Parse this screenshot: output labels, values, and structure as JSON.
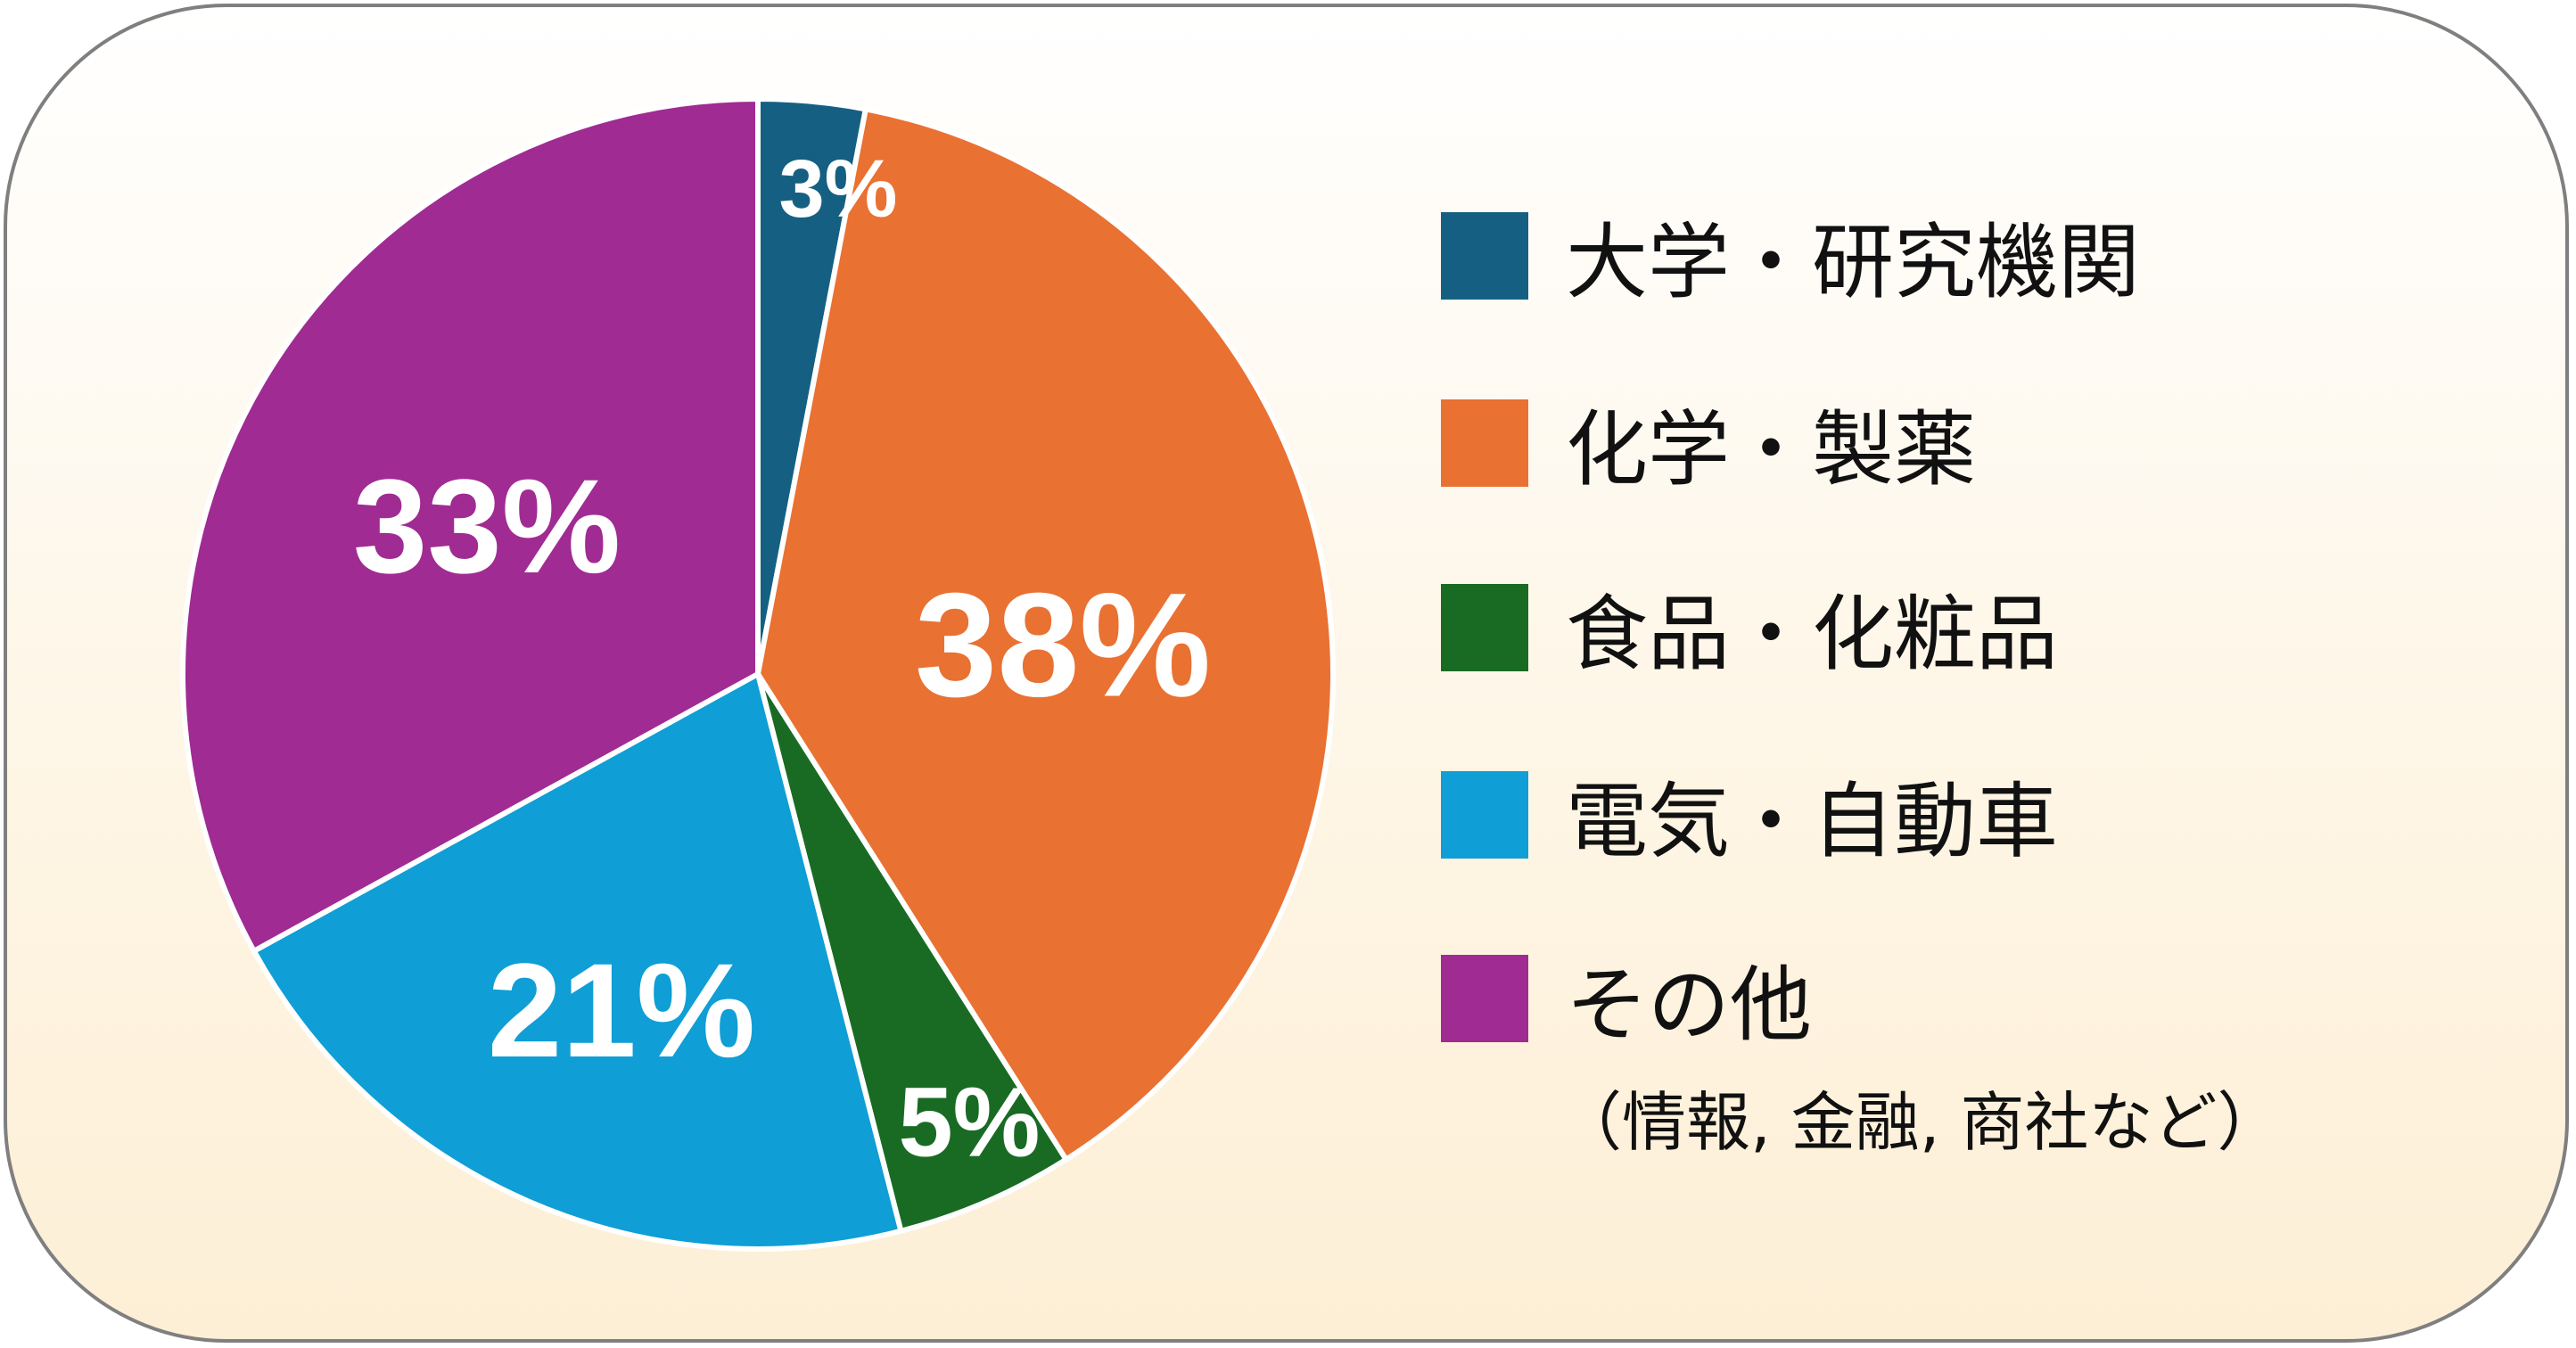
{
  "chart_data": {
    "type": "pie",
    "start": "top",
    "direction": "clockwise",
    "legend_position": "right",
    "slices": [
      {
        "label": "大学・研究機関",
        "value": 3,
        "data_label": "3%",
        "color": "#156082"
      },
      {
        "label": "化学・製薬",
        "value": 38,
        "data_label": "38%",
        "color": "#e97132"
      },
      {
        "label": "食品・化粧品",
        "value": 5,
        "data_label": "5%",
        "color": "#196b24"
      },
      {
        "label": "電気・自動車",
        "value": 21,
        "data_label": "21%",
        "color": "#0f9ed5"
      },
      {
        "label": "その他",
        "value": 33,
        "data_label": "33%",
        "color": "#a02b93"
      }
    ],
    "legend_note": "（情報, 金融, 商社など）"
  }
}
